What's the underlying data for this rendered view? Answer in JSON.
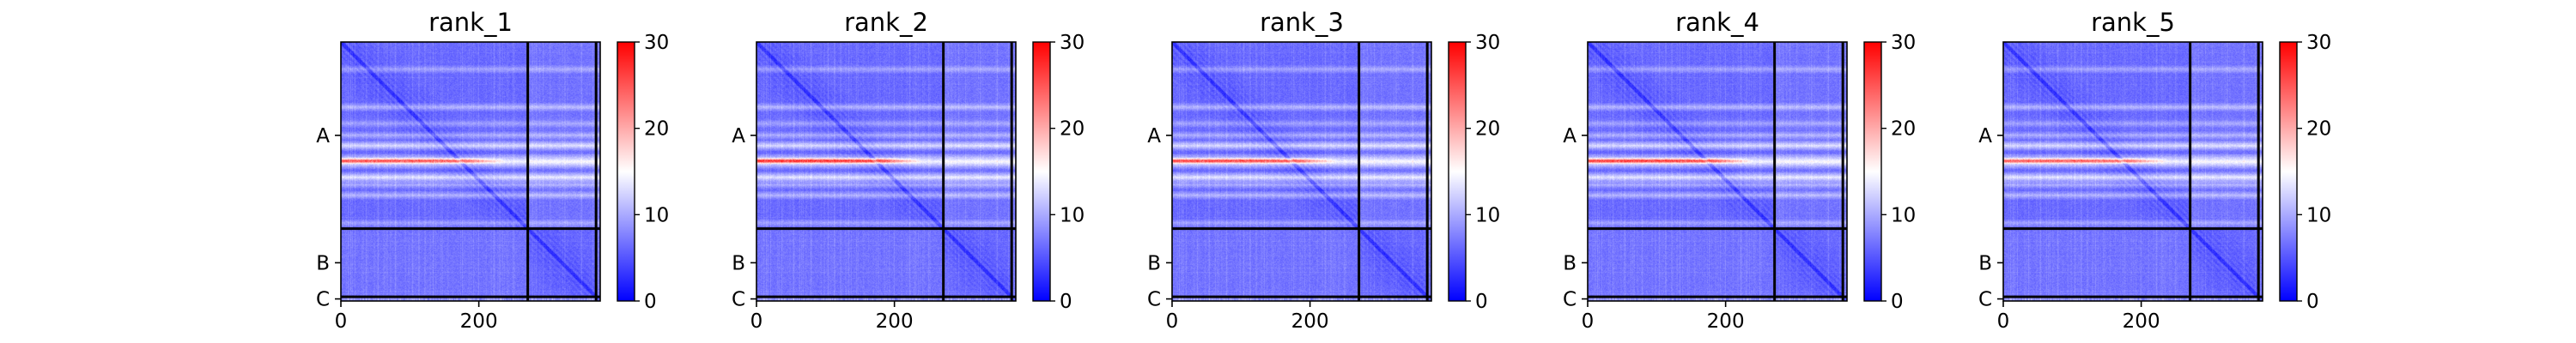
{
  "chart_data": [
    {
      "type": "heatmap",
      "title": "rank_1",
      "matrix_size": 376,
      "x_ticks": [
        0,
        200
      ],
      "y_tick_labels": [
        "A",
        "B",
        "C"
      ],
      "chain_boundaries": [
        0,
        271,
        370,
        376
      ],
      "colorbar": {
        "ticks": [
          0,
          10,
          20,
          30
        ],
        "range": [
          0,
          30
        ],
        "colors": [
          "#0000ff",
          "#ffffff",
          "#ff0000"
        ]
      },
      "hot_row_strength": 0.85
    },
    {
      "type": "heatmap",
      "title": "rank_2",
      "matrix_size": 376,
      "x_ticks": [
        0,
        200
      ],
      "y_tick_labels": [
        "A",
        "B",
        "C"
      ],
      "chain_boundaries": [
        0,
        271,
        370,
        376
      ],
      "colorbar": {
        "ticks": [
          0,
          10,
          20,
          30
        ],
        "range": [
          0,
          30
        ],
        "colors": [
          "#0000ff",
          "#ffffff",
          "#ff0000"
        ]
      },
      "hot_row_strength": 1.0
    },
    {
      "type": "heatmap",
      "title": "rank_3",
      "matrix_size": 376,
      "x_ticks": [
        0,
        200
      ],
      "y_tick_labels": [
        "A",
        "B",
        "C"
      ],
      "chain_boundaries": [
        0,
        271,
        370,
        376
      ],
      "colorbar": {
        "ticks": [
          0,
          10,
          20,
          30
        ],
        "range": [
          0,
          30
        ],
        "colors": [
          "#0000ff",
          "#ffffff",
          "#ff0000"
        ]
      },
      "hot_row_strength": 0.9
    },
    {
      "type": "heatmap",
      "title": "rank_4",
      "matrix_size": 376,
      "x_ticks": [
        0,
        200
      ],
      "y_tick_labels": [
        "A",
        "B",
        "C"
      ],
      "chain_boundaries": [
        0,
        271,
        370,
        376
      ],
      "colorbar": {
        "ticks": [
          0,
          10,
          20,
          30
        ],
        "range": [
          0,
          30
        ],
        "colors": [
          "#0000ff",
          "#ffffff",
          "#ff0000"
        ]
      },
      "hot_row_strength": 0.95
    },
    {
      "type": "heatmap",
      "title": "rank_5",
      "matrix_size": 376,
      "x_ticks": [
        0,
        200
      ],
      "y_tick_labels": [
        "A",
        "B",
        "C"
      ],
      "chain_boundaries": [
        0,
        271,
        370,
        376
      ],
      "colorbar": {
        "ticks": [
          0,
          10,
          20,
          30
        ],
        "range": [
          0,
          30
        ],
        "colors": [
          "#0000ff",
          "#ffffff",
          "#ff0000"
        ]
      },
      "hot_row_strength": 0.8
    }
  ]
}
